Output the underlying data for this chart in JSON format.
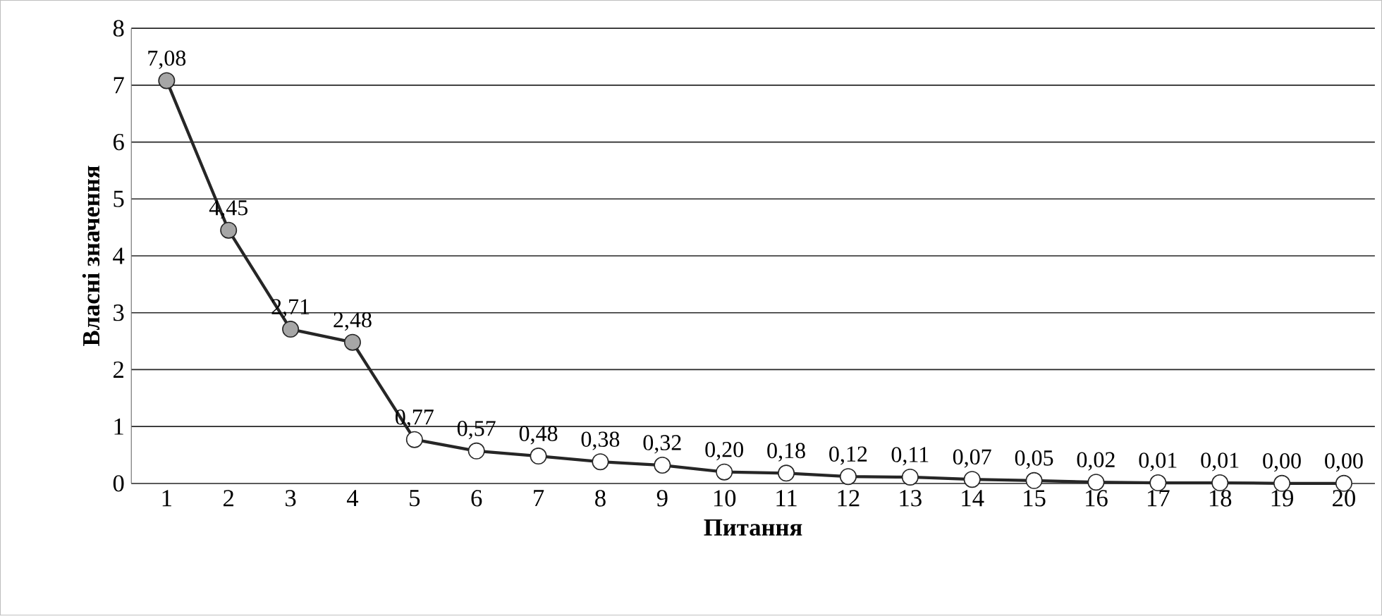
{
  "chart_data": {
    "type": "line",
    "xlabel": "Питання",
    "ylabel": "Власні значення",
    "categories": [
      "1",
      "2",
      "3",
      "4",
      "5",
      "6",
      "7",
      "8",
      "9",
      "10",
      "11",
      "12",
      "13",
      "14",
      "15",
      "16",
      "17",
      "18",
      "19",
      "20"
    ],
    "values": [
      7.08,
      4.45,
      2.71,
      2.48,
      0.77,
      0.57,
      0.48,
      0.38,
      0.32,
      0.2,
      0.18,
      0.12,
      0.11,
      0.07,
      0.05,
      0.02,
      0.01,
      0.01,
      0.0,
      0.0
    ],
    "value_labels": [
      "7,08",
      "4,45",
      "2,71",
      "2,48",
      "0,77",
      "0,57",
      "0,48",
      "0,38",
      "0,32",
      "0,20",
      "0,18",
      "0,12",
      "0,11",
      "0,07",
      "0,05",
      "0,02",
      "0,01",
      "0,01",
      "0,00",
      "0,00"
    ],
    "color": "#262626",
    "colors": [
      "#a6a6a6",
      "#a6a6a6",
      "#a6a6a6",
      "#a6a6a6",
      "#ffffff",
      "#ffffff",
      "#ffffff",
      "#ffffff",
      "#ffffff",
      "#ffffff",
      "#ffffff",
      "#ffffff",
      "#ffffff",
      "#ffffff",
      "#ffffff",
      "#ffffff",
      "#ffffff",
      "#ffffff",
      "#ffffff",
      "#ffffff"
    ],
    "ylim": [
      0,
      8
    ],
    "yticks": [
      0,
      1,
      2,
      3,
      4,
      5,
      6,
      7,
      8
    ],
    "grid": "y",
    "marker": "circle",
    "line_style": "solid"
  }
}
